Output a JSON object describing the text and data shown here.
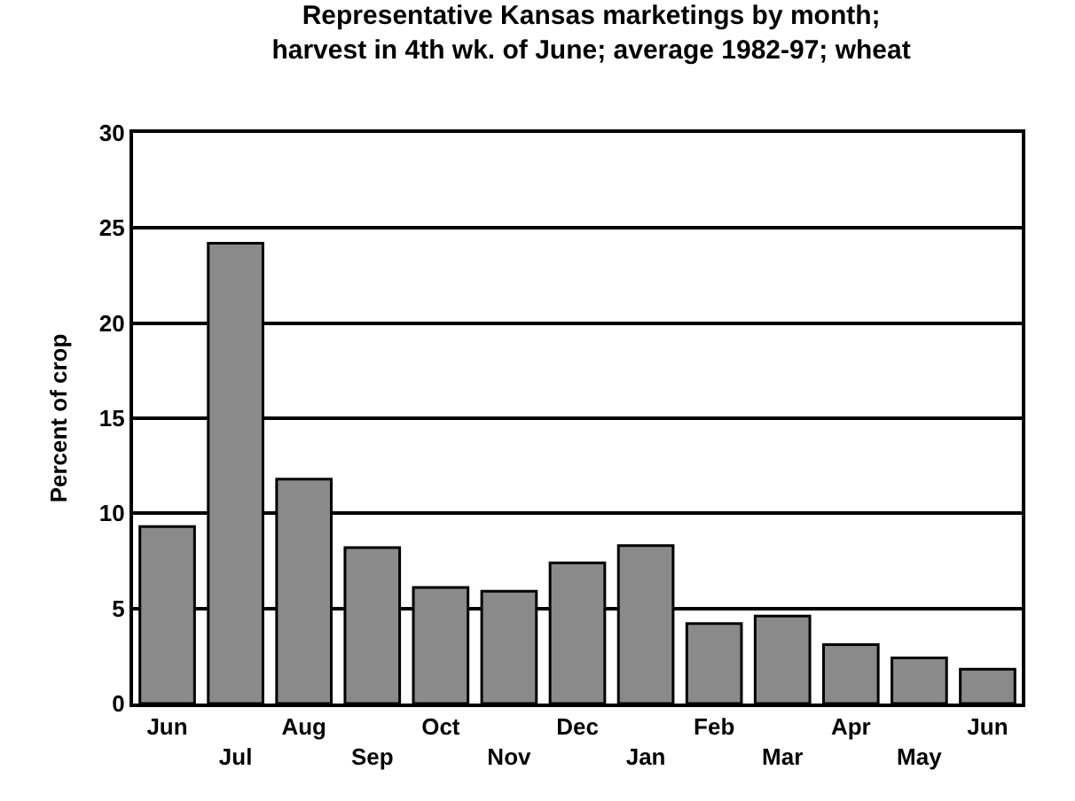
{
  "chart_data": {
    "type": "bar",
    "title": "Representative Kansas marketings by month;\nharvest in 4th wk. of June; average 1982-97; wheat",
    "ylabel": "Percent of crop",
    "categories": [
      "Jun",
      "Jul",
      "Aug",
      "Sep",
      "Oct",
      "Nov",
      "Dec",
      "Jan",
      "Feb",
      "Mar",
      "Apr",
      "May",
      "Jun"
    ],
    "values": [
      9.3,
      24.2,
      11.8,
      8.2,
      6.1,
      5.9,
      7.4,
      8.3,
      4.2,
      4.6,
      3.1,
      2.4,
      1.8
    ],
    "color": "#8a8a8a",
    "ylim": [
      0,
      30
    ],
    "yticks": [
      0,
      5,
      10,
      15,
      20,
      25,
      30
    ],
    "grid": "y",
    "legend": false
  }
}
